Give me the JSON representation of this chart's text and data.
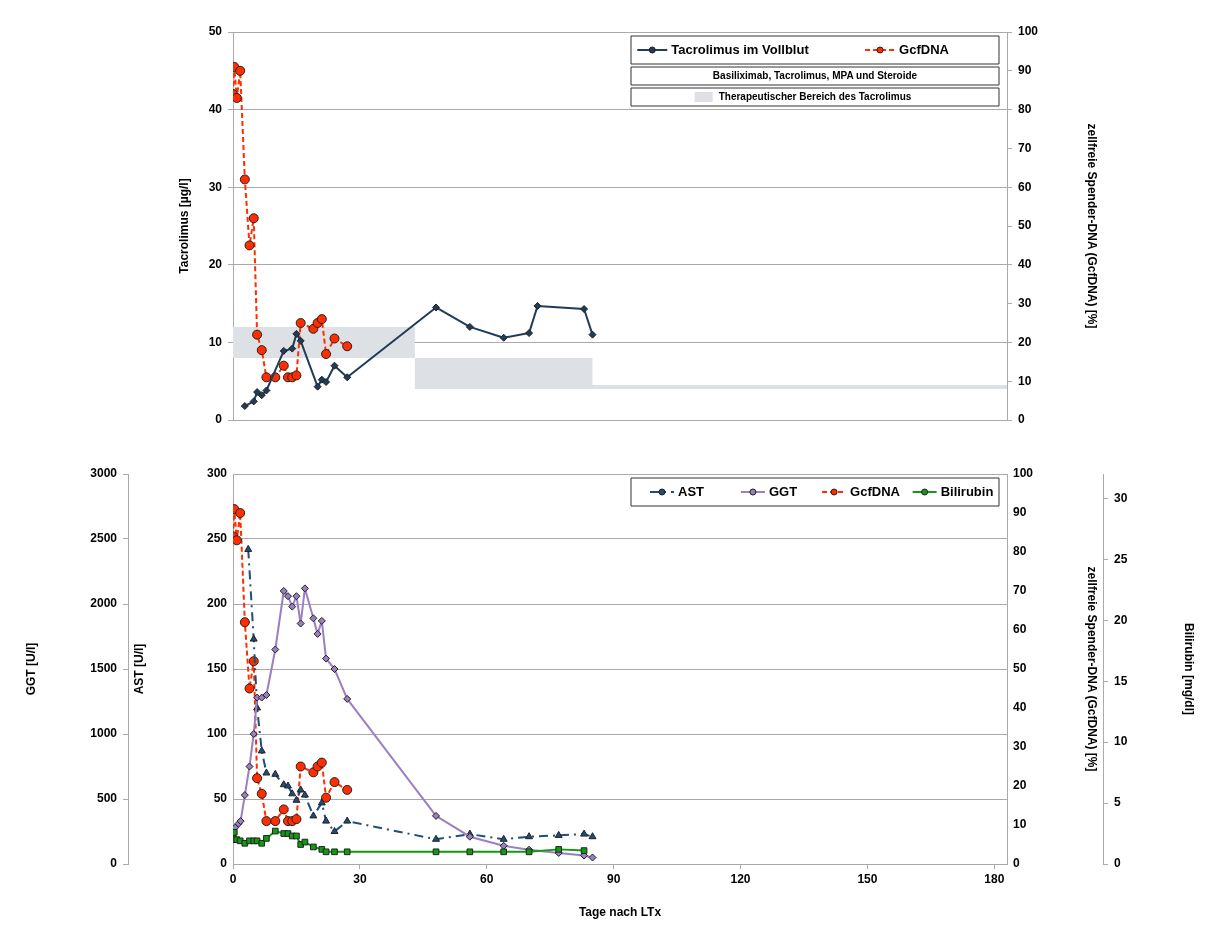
{
  "chart_data": [
    {
      "type": "line",
      "ylabel": "Tacrolimus [µg/l]",
      "y2label": "zellfreie Spender-DNA (GcfDNA) [%]",
      "xlim": [
        0,
        183
      ],
      "xticks": [
        0,
        30,
        60,
        90,
        120,
        150,
        180
      ],
      "ylim": [
        0,
        50
      ],
      "yticks": [
        0,
        10,
        20,
        30,
        40,
        50
      ],
      "y2lim": [
        0,
        100
      ],
      "y2ticks": [
        0,
        10,
        20,
        30,
        40,
        50,
        60,
        70,
        80,
        90,
        100
      ],
      "grid": "y",
      "legend": "top right",
      "tick_labels": "y",
      "annotations": [
        "Basiliximab, Tacrolimus, MPA und Steroide"
      ],
      "series": [
        {
          "name": "Therapeutischer Bereich des Tacrolimus",
          "color": "#dde1e6",
          "x": [
            0,
            43,
            43,
            85,
            85,
            183
          ],
          "values": [
            null,
            null,
            null,
            null,
            null,
            null
          ],
          "lower": [
            8,
            8,
            4,
            4,
            4,
            4
          ],
          "upper": [
            12,
            12,
            8,
            8,
            4.5,
            4.5
          ]
        },
        {
          "name": "Tacrolimus im Vollblut",
          "color": "#1f3c5a",
          "marker": "diamond",
          "line_style": "solid",
          "x": [
            2.8,
            4.9,
            5.7,
            6.8,
            7.9,
            12,
            14,
            15,
            16,
            20,
            21,
            22,
            24,
            27,
            48,
            56,
            64,
            70,
            72,
            83,
            85
          ],
          "values": [
            1.8,
            2.4,
            3.6,
            3.2,
            3.8,
            8.9,
            9.2,
            11.1,
            10.2,
            4.3,
            5.2,
            4.9,
            7.0,
            5.5,
            14.5,
            12.0,
            10.6,
            11.2,
            14.7,
            14.3,
            11.0
          ]
        },
        {
          "name": "GcfDNA",
          "axis": "y2",
          "color": "#ff2d00",
          "marker": "circle",
          "line_style": "dashed",
          "x": [
            0,
            0.3,
            0.9,
            1.7,
            2.8,
            3.9,
            4.9,
            5.7,
            6.8,
            7.9,
            10,
            12,
            13,
            14,
            15,
            16,
            19,
            20,
            21,
            22,
            24,
            27
          ],
          "values": [
            84,
            91,
            83,
            90,
            62,
            45,
            52,
            22,
            18,
            11,
            11,
            14,
            11,
            11,
            11.5,
            25,
            23.5,
            25,
            26,
            17,
            21,
            19
          ]
        }
      ]
    },
    {
      "type": "line",
      "xlabel": "Tage nach LTx",
      "ylabel": "AST [U/l]",
      "y2label": "zellfreie Spender-DNA (GcfDNA) [%]",
      "xlim": [
        0,
        183
      ],
      "xticks": [
        0,
        30,
        60,
        90,
        120,
        150,
        180
      ],
      "ylim": [
        0,
        300
      ],
      "yticks": [
        0,
        50,
        100,
        150,
        200,
        250,
        300
      ],
      "y2lim": [
        0,
        100
      ],
      "y2ticks": [
        0,
        10,
        20,
        30,
        40,
        50,
        60,
        70,
        80,
        90,
        100
      ],
      "grid": "y",
      "legend": "top right",
      "series": [
        {
          "name": "AST",
          "color": "#1f4e79",
          "marker": "triangle",
          "line_style": "dashdot",
          "x": [
            3.6,
            4.9,
            5.7,
            6.8,
            7.9,
            10,
            12,
            13,
            14,
            15,
            16,
            17,
            19,
            21,
            22,
            24,
            27,
            48,
            56,
            64,
            70,
            77,
            83,
            85
          ],
          "values": [
            242,
            173,
            120,
            87,
            70,
            69,
            61,
            60,
            54,
            49,
            57,
            53,
            37,
            47,
            33,
            25,
            33,
            19,
            23,
            19,
            21,
            22,
            23,
            21
          ]
        },
        {
          "name": "GcfDNA",
          "axis": "y2",
          "color": "#ff2d00",
          "marker": "circle",
          "line_style": "dashed",
          "x": [
            0,
            0.3,
            0.9,
            1.7,
            2.8,
            3.9,
            4.9,
            5.7,
            6.8,
            7.9,
            10,
            12,
            13,
            14,
            15,
            16,
            19,
            20,
            21,
            22,
            24,
            27
          ],
          "values": [
            84,
            91,
            83,
            90,
            62,
            45,
            52,
            22,
            18,
            11,
            11,
            14,
            11,
            11,
            11.5,
            25,
            23.5,
            25,
            26,
            17,
            21,
            19
          ]
        }
      ]
    },
    {
      "type": "line",
      "ylabel": "GGT [U/l]",
      "xlim": [
        0,
        183
      ],
      "ylim": [
        0,
        3000
      ],
      "yticks": [
        0,
        500,
        1000,
        1500,
        2000,
        2500,
        3000
      ],
      "tick_labels": "y",
      "legend": "top right",
      "series": [
        {
          "name": "GGT",
          "color": "#9a7fc1",
          "marker": "diamond",
          "line_style": "solid",
          "x": [
            0,
            0.5,
            1.3,
            1.8,
            2.8,
            3.9,
            4.9,
            5.7,
            6.8,
            7.9,
            10,
            12,
            13,
            14,
            15,
            16,
            17,
            19,
            20,
            21,
            22,
            24,
            27,
            48,
            56,
            64,
            70,
            77,
            83,
            85
          ],
          "values": [
            260,
            280,
            310,
            330,
            530,
            750,
            1000,
            1280,
            1280,
            1300,
            1650,
            2100,
            2060,
            1980,
            2060,
            1850,
            2120,
            1890,
            1770,
            1870,
            1580,
            1500,
            1270,
            370,
            210,
            140,
            110,
            85,
            65,
            50
          ]
        }
      ]
    },
    {
      "type": "line",
      "ylabel": "Bilirubin [mg/dl]",
      "xlim": [
        0,
        183
      ],
      "ylim": [
        0,
        32
      ],
      "yticks": [
        0,
        5,
        10,
        15,
        20,
        25,
        30
      ],
      "tick_labels": "y",
      "legend": "top right",
      "series": [
        {
          "name": "Bilirubin",
          "color": "#129a12",
          "marker": "square",
          "line_style": "solid",
          "x": [
            0,
            0.3,
            0.9,
            1.7,
            2.8,
            3.9,
            4.9,
            5.7,
            6.8,
            7.9,
            10,
            12,
            13,
            14,
            15,
            16,
            17,
            19,
            21,
            22,
            24,
            27,
            48,
            56,
            64,
            70,
            77,
            83
          ],
          "values": [
            2.0,
            2.6,
            2.0,
            1.9,
            1.7,
            1.9,
            1.9,
            1.9,
            1.7,
            2.1,
            2.7,
            2.5,
            2.5,
            2.3,
            2.3,
            1.6,
            1.8,
            1.4,
            1.2,
            1.0,
            1.0,
            1.0,
            1.0,
            1.0,
            1.0,
            1.0,
            1.2,
            1.1
          ]
        }
      ]
    }
  ]
}
